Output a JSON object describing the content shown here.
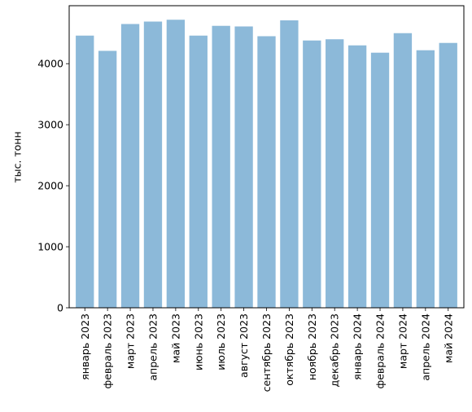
{
  "chart_data": {
    "type": "bar",
    "title": "",
    "xlabel": "",
    "ylabel": "тыс. тонн",
    "categories": [
      "январь 2023",
      "февраль 2023",
      "март 2023",
      "апрель 2023",
      "май 2023",
      "июнь 2023",
      "июль 2023",
      "август 2023",
      "сентябрь 2023",
      "октябрь 2023",
      "ноябрь 2023",
      "декабрь 2023",
      "январь 2024",
      "февраль 2024",
      "март 2024",
      "апрель 2024",
      "май 2024"
    ],
    "values": [
      4460,
      4210,
      4650,
      4690,
      4720,
      4460,
      4620,
      4610,
      4450,
      4710,
      4380,
      4400,
      4300,
      4180,
      4500,
      4220,
      4340
    ],
    "ylim": [
      0,
      4950
    ],
    "yticks": [
      0,
      1000,
      2000,
      3000,
      4000
    ],
    "grid": false,
    "bar_color": "#8cb9d9"
  }
}
